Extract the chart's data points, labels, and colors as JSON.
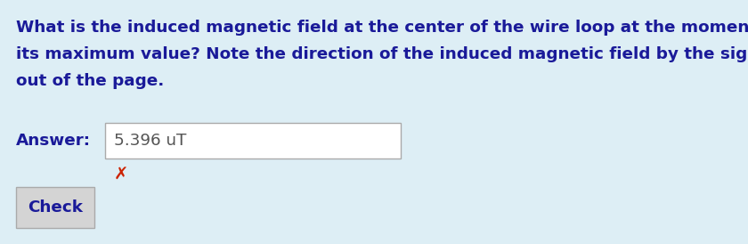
{
  "background_color": "#ddeef5",
  "question_text_line1": "What is the induced magnetic field at the center of the wire loop at the moment the current reaches",
  "question_text_line2": "its maximum value? Note the direction of the induced magnetic field by the sign. The + direction is",
  "question_text_line3": "out of the page.",
  "answer_label": "Answer:",
  "answer_value": "5.396 uT",
  "button_label": "Check",
  "text_color": "#1a1a99",
  "answer_text_color": "#555555",
  "answer_box_bg": "#ffffff",
  "answer_box_border": "#aaaaaa",
  "button_bg": "#d4d4d4",
  "button_border": "#aaaaaa",
  "cross_color": "#cc2200",
  "font_size_question": 13.2,
  "font_size_answer_label": 13.2,
  "font_size_answer_value": 13.2,
  "font_size_button": 13.2,
  "fig_width": 8.4,
  "fig_height": 2.74,
  "dpi": 100
}
